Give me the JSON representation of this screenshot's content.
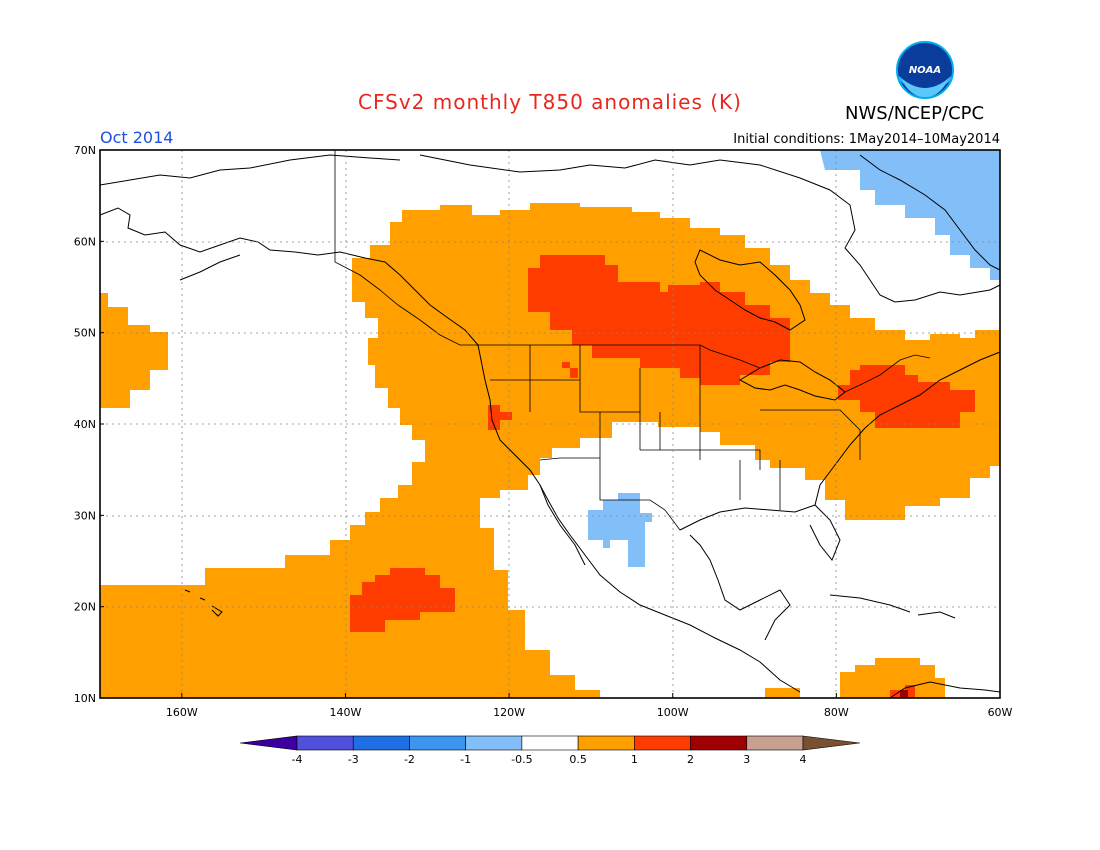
{
  "title": "CFSv2 monthly T850 anomalies (K)",
  "month_label": "Oct 2014",
  "initial_conditions": "Initial conditions: 1May2014–10May2014",
  "organization": "NWS/NCEP/CPC",
  "logo_text": "NOAA",
  "map": {
    "lat_labels": [
      "70N",
      "60N",
      "50N",
      "40N",
      "30N",
      "20N",
      "10N"
    ],
    "lon_labels": [
      "160W",
      "140W",
      "120W",
      "100W",
      "80W",
      "60W"
    ],
    "lat_values": [
      70,
      60,
      50,
      40,
      30,
      20,
      10
    ],
    "lon_values": [
      -160,
      -140,
      -120,
      -100,
      -80,
      -60
    ],
    "extent": {
      "lon_min": -170,
      "lon_max": -60,
      "lat_min": 10,
      "lat_max": 70
    },
    "colors": {
      "warm_0_5_1": "#ff9f00",
      "warm_1_2": "#ff3c00",
      "warm_2_3": "#a00000",
      "cool_m1_m0_5": "#82bef7"
    }
  },
  "colorbar": {
    "labels": [
      "-4",
      "-3",
      "-2",
      "-1",
      "-0.5",
      "0.5",
      "1",
      "2",
      "3",
      "4"
    ],
    "colors": [
      "#3c00a0",
      "#5050dc",
      "#1e6ee6",
      "#3c96f0",
      "#82bef7",
      "#ffffff",
      "#ff9f00",
      "#ff3c00",
      "#a00000",
      "#c8a090",
      "#785032"
    ]
  }
}
